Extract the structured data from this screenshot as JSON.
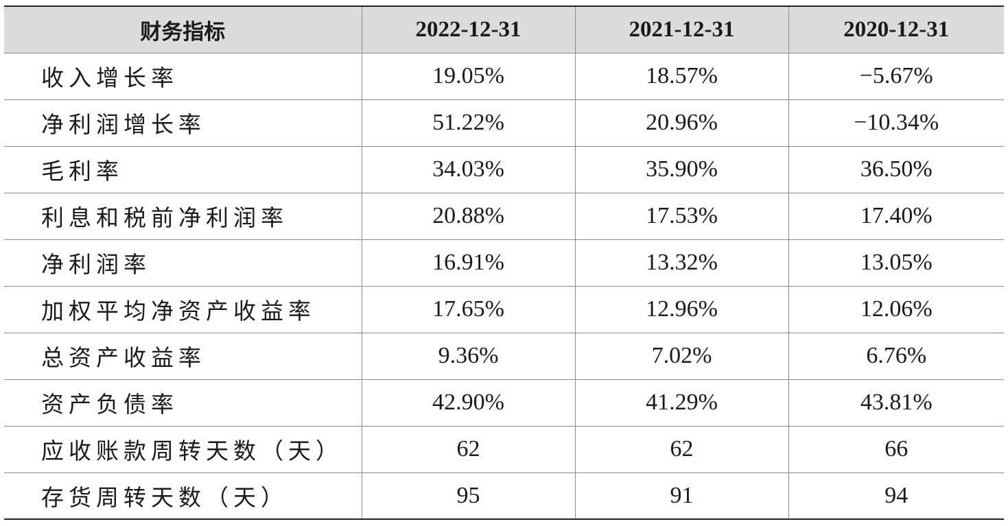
{
  "table": {
    "headers": [
      "财务指标",
      "2022-12-31",
      "2021-12-31",
      "2020-12-31"
    ],
    "rows": [
      {
        "label": "收入增长率",
        "values": [
          "19.05%",
          "18.57%",
          "−5.67%"
        ]
      },
      {
        "label": "净利润增长率",
        "values": [
          "51.22%",
          "20.96%",
          "−10.34%"
        ]
      },
      {
        "label": "毛利率",
        "values": [
          "34.03%",
          "35.90%",
          "36.50%"
        ]
      },
      {
        "label": "利息和税前净利润率",
        "values": [
          "20.88%",
          "17.53%",
          "17.40%"
        ]
      },
      {
        "label": "净利润率",
        "values": [
          "16.91%",
          "13.32%",
          "13.05%"
        ]
      },
      {
        "label": "加权平均净资产收益率",
        "values": [
          "17.65%",
          "12.96%",
          "12.06%"
        ]
      },
      {
        "label": "总资产收益率",
        "values": [
          "9.36%",
          "7.02%",
          "6.76%"
        ]
      },
      {
        "label": "资产负债率",
        "values": [
          "42.90%",
          "41.29%",
          "43.81%"
        ]
      },
      {
        "label": "应收账款周转天数（天）",
        "values": [
          "62",
          "62",
          "66"
        ]
      },
      {
        "label": "存货周转天数（天）",
        "values": [
          "95",
          "91",
          "94"
        ]
      }
    ]
  }
}
